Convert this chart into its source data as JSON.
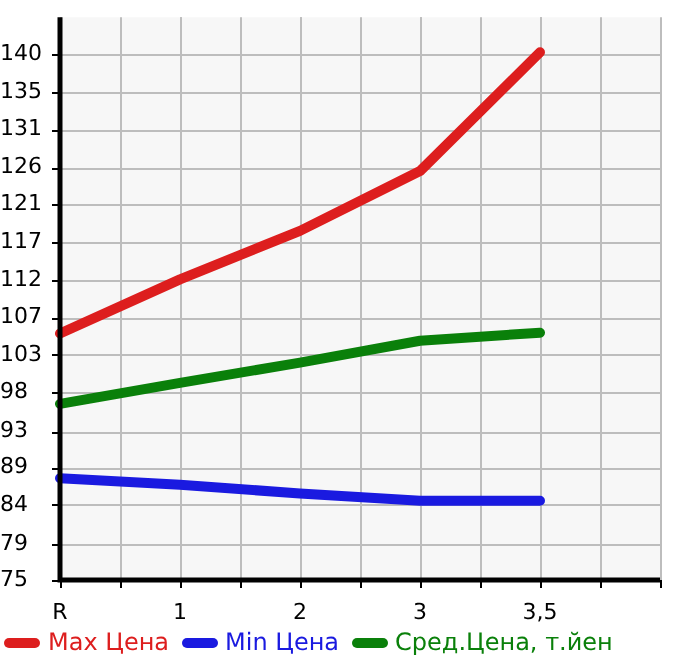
{
  "chart_data": {
    "type": "line",
    "categories": [
      "R",
      "1",
      "2",
      "3",
      "3,5",
      null
    ],
    "series": [
      {
        "name": "Max Цена",
        "color": "#dd1e1e",
        "values": [
          105.5,
          112.2,
          118.2,
          125.6,
          140.3,
          null
        ]
      },
      {
        "name": "Min Цена",
        "color": "#1a1ae0",
        "values": [
          87.6,
          86.8,
          85.7,
          84.8,
          84.8,
          null
        ]
      },
      {
        "name": "Сред.Цена, т.йен",
        "color": "#0a800a",
        "values": [
          96.8,
          99.4,
          101.9,
          104.6,
          105.6,
          null
        ]
      }
    ],
    "ylim": [
      75,
      144.64
    ],
    "yticks": [
      75,
      {
        "value": 79.4,
        "label": "79"
      },
      {
        "value": 84.29,
        "label": "84"
      },
      {
        "value": 88.93,
        "label": "89"
      },
      {
        "value": 93.4,
        "label": "93"
      },
      {
        "value": 98.21,
        "label": "98"
      },
      {
        "value": 102.86,
        "label": "103"
      },
      {
        "value": 107.5,
        "label": "107"
      },
      {
        "value": 112.14,
        "label": "112"
      },
      {
        "value": 116.79,
        "label": "117"
      },
      {
        "value": 121.43,
        "label": "121"
      },
      {
        "value": 126.07,
        "label": "126"
      },
      {
        "value": 130.71,
        "label": "131"
      },
      {
        "value": 135.36,
        "label": "135"
      },
      140
    ],
    "grid": true,
    "legend": "bottom",
    "marker": "none",
    "line_style": "solid"
  }
}
